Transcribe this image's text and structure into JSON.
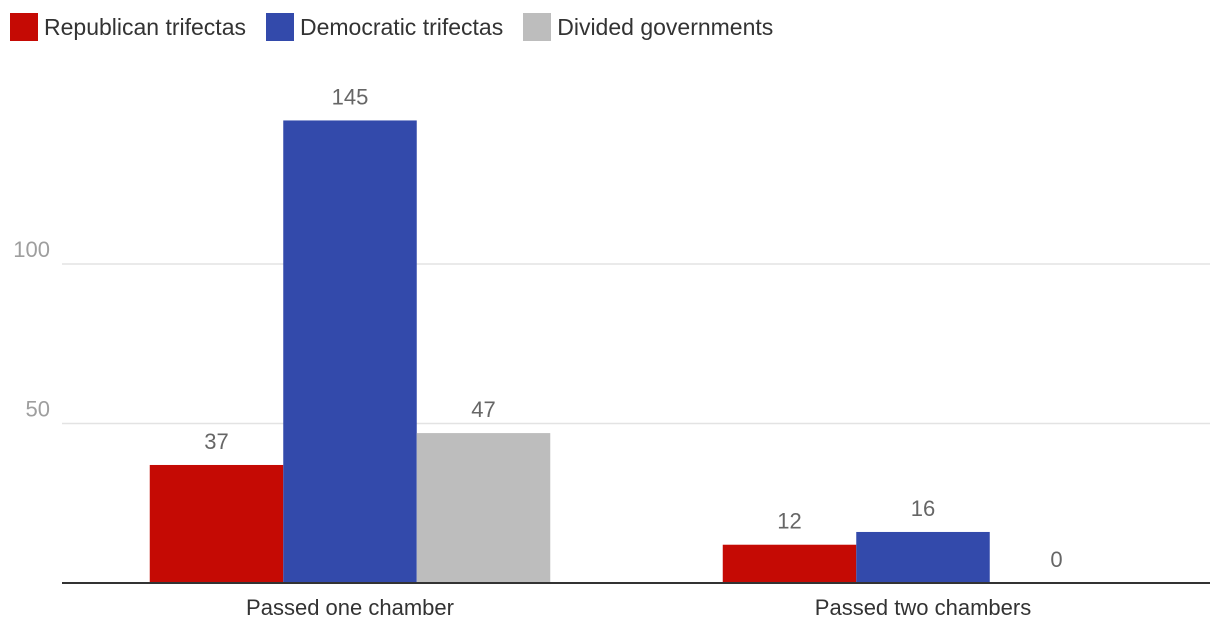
{
  "legend": [
    {
      "label": "Republican trifectas",
      "color": "#c50a04"
    },
    {
      "label": "Democratic trifectas",
      "color": "#334aab"
    },
    {
      "label": "Divided governments",
      "color": "#bdbdbd"
    }
  ],
  "chart_data": {
    "type": "bar",
    "title": "",
    "xlabel": "",
    "ylabel": "",
    "categories": [
      "Passed one chamber",
      "Passed two chambers"
    ],
    "series": [
      {
        "name": "Republican trifectas",
        "values": [
          37,
          12
        ],
        "color": "#c50a04"
      },
      {
        "name": "Democratic trifectas",
        "values": [
          145,
          16
        ],
        "color": "#334aab"
      },
      {
        "name": "Divided governments",
        "values": [
          47,
          0
        ],
        "color": "#bdbdbd"
      }
    ],
    "ylim": [
      0,
      160
    ],
    "yticks": [
      50,
      100
    ],
    "ytick_labels": [
      "50",
      "100"
    ],
    "grid": true,
    "legend_position": "top-left"
  }
}
